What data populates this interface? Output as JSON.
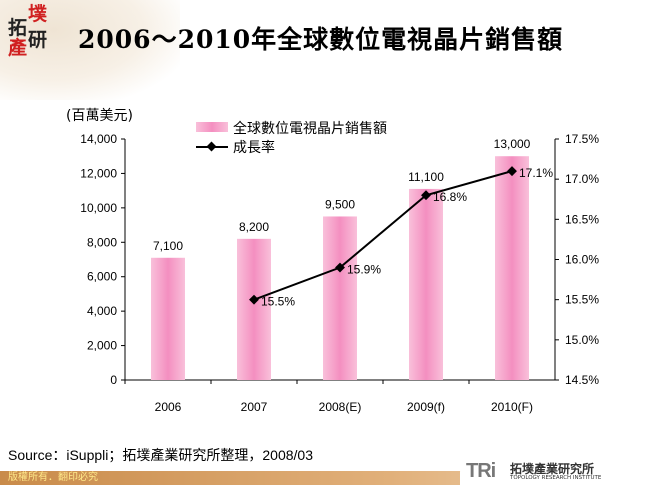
{
  "header": {
    "logo_text": [
      "拓",
      "墣",
      "產",
      "研"
    ],
    "title": "2006～2010年全球數位電視晶片銷售額"
  },
  "chart_data": {
    "type": "bar+line",
    "title": "2006～2010年全球數位電視晶片銷售額",
    "ylabel": "(百萬美元)",
    "categories": [
      "2006",
      "2007",
      "2008(E)",
      "2009(f)",
      "2010(F)"
    ],
    "ylim": [
      0,
      14000
    ],
    "yticks": [
      "0",
      "2,000",
      "4,000",
      "6,000",
      "8,000",
      "10,000",
      "12,000",
      "14,000"
    ],
    "y2lim": [
      14.5,
      17.5
    ],
    "y2ticks": [
      "14.5%",
      "15.0%",
      "15.5%",
      "16.0%",
      "16.5%",
      "17.0%",
      "17.5%"
    ],
    "legend_position": "top",
    "grid": false,
    "series": [
      {
        "name": "全球數位電視晶片銷售額",
        "type": "bar",
        "color": "#f7a8cc",
        "values": [
          7100,
          8200,
          9500,
          11100,
          13000
        ],
        "labels": [
          "7,100",
          "8,200",
          "9,500",
          "11,100",
          "13,000"
        ]
      },
      {
        "name": "成長率",
        "type": "line",
        "axis": "right",
        "color": "#000000",
        "values": [
          null,
          15.5,
          15.9,
          16.8,
          17.1
        ],
        "labels": [
          "",
          "15.5%",
          "15.9%",
          "16.8%",
          "17.1%"
        ]
      }
    ]
  },
  "source": "Source：iSuppli；拓墣產業研究所整理，2008/03",
  "footer": {
    "copyright": "版權所有．翻印必究",
    "org_logo": "TRi",
    "org_name": "拓墣產業研究所",
    "org_name_en": "TOPOLOGY RESEARCH INSTITUTE"
  }
}
